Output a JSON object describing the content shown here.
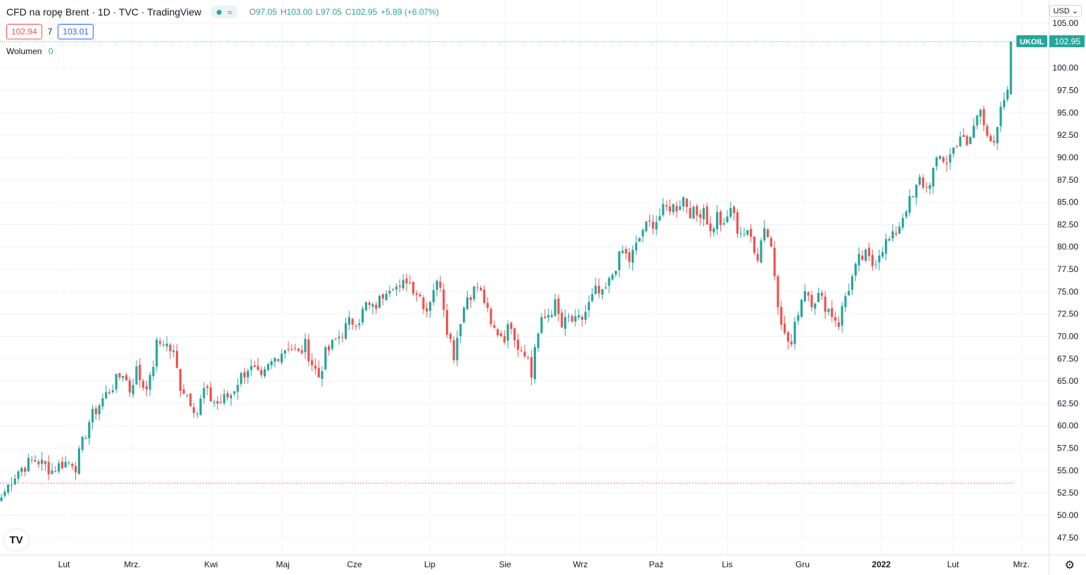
{
  "header": {
    "title": "CFD na ropę Brent · 1D · TVC · TradingView",
    "ohlc": [
      {
        "k": "O",
        "v": "97.05"
      },
      {
        "k": "H",
        "v": "103.00"
      },
      {
        "k": "L",
        "v": "97.05"
      },
      {
        "k": "C",
        "v": "102.95"
      }
    ],
    "change": "+5.89 (+6.07%)",
    "bid": "102.94",
    "spread": "7",
    "ask": "103.01",
    "volume_label": "Wolumen",
    "volume_value": "0",
    "currency": "USD"
  },
  "colors": {
    "up": "#26a69a",
    "down": "#ef5350",
    "grid": "#f0f3fa",
    "axis_text": "#131722"
  },
  "icons": {
    "logo": "tradingview-logo-icon",
    "settings": "gear-icon",
    "currency_dropdown": "chevron-down-icon"
  },
  "chart_data": {
    "type": "candlestick",
    "symbol_label": "UKOIL",
    "last_price": "102.95",
    "ylim": [
      45.6,
      107.6
    ],
    "y_ticks": [
      47.5,
      50,
      52.5,
      55,
      57.5,
      60,
      62.5,
      65,
      67.5,
      70,
      72.5,
      75,
      77.5,
      80,
      82.5,
      85,
      87.5,
      90,
      92.5,
      95,
      97.5,
      100,
      105
    ],
    "x_labels": [
      {
        "label": "Lut",
        "bold": false
      },
      {
        "label": "Mrz.",
        "bold": false
      },
      {
        "label": "Kwi",
        "bold": false
      },
      {
        "label": "Maj",
        "bold": false
      },
      {
        "label": "Cze",
        "bold": false
      },
      {
        "label": "Lip",
        "bold": false
      },
      {
        "label": "Sie",
        "bold": false
      },
      {
        "label": "Wrz",
        "bold": false
      },
      {
        "label": "Paź",
        "bold": false
      },
      {
        "label": "Lis",
        "bold": false
      },
      {
        "label": "Gru",
        "bold": false
      },
      {
        "label": "2022",
        "bold": true
      },
      {
        "label": "Lut",
        "bold": false
      },
      {
        "label": "Mrz.",
        "bold": false
      }
    ],
    "prev_close_line": 53.6,
    "anchors": [
      [
        0,
        52.0
      ],
      [
        3,
        54.0
      ],
      [
        5,
        55.0
      ],
      [
        8,
        55.8
      ],
      [
        10,
        56.3
      ],
      [
        13,
        55.5
      ],
      [
        15,
        55.0
      ],
      [
        18,
        55.8
      ],
      [
        21,
        56.0
      ],
      [
        22,
        55.5
      ],
      [
        24,
        58.0
      ],
      [
        26,
        60.5
      ],
      [
        28,
        61.8
      ],
      [
        30,
        63.0
      ],
      [
        33,
        64.5
      ],
      [
        36,
        66.0
      ],
      [
        38,
        64.0
      ],
      [
        40,
        66.2
      ],
      [
        42,
        64.5
      ],
      [
        44,
        65.0
      ],
      [
        46,
        69.0
      ],
      [
        48,
        69.5
      ],
      [
        51,
        68.0
      ],
      [
        53,
        64.5
      ],
      [
        55,
        63.5
      ],
      [
        58,
        61.5
      ],
      [
        60,
        64.0
      ],
      [
        62,
        63.0
      ],
      [
        64,
        62.5
      ],
      [
        66,
        63.0
      ],
      [
        68,
        63.5
      ],
      [
        70,
        65.0
      ],
      [
        73,
        66.5
      ],
      [
        75,
        66.0
      ],
      [
        77,
        65.0
      ],
      [
        79,
        66.5
      ],
      [
        82,
        68.0
      ],
      [
        85,
        69.0
      ],
      [
        88,
        68.0
      ],
      [
        90,
        69.0
      ],
      [
        92,
        67.0
      ],
      [
        94,
        65.5
      ],
      [
        96,
        68.0
      ],
      [
        98,
        69.0
      ],
      [
        100,
        70.0
      ],
      [
        103,
        71.5
      ],
      [
        106,
        72.0
      ],
      [
        108,
        73.5
      ],
      [
        110,
        73.0
      ],
      [
        112,
        74.0
      ],
      [
        114,
        75.5
      ],
      [
        116,
        76.0
      ],
      [
        118,
        75.0
      ],
      [
        120,
        76.5
      ],
      [
        122,
        75.5
      ],
      [
        124,
        74.5
      ],
      [
        126,
        73.0
      ],
      [
        128,
        75.5
      ],
      [
        130,
        76.0
      ],
      [
        132,
        71.0
      ],
      [
        134,
        68.0
      ],
      [
        136,
        72.0
      ],
      [
        138,
        74.5
      ],
      [
        141,
        75.5
      ],
      [
        143,
        74.0
      ],
      [
        145,
        71.0
      ],
      [
        147,
        70.5
      ],
      [
        149,
        70.0
      ],
      [
        151,
        71.5
      ],
      [
        153,
        69.0
      ],
      [
        155,
        68.5
      ],
      [
        156,
        67.5
      ],
      [
        157,
        65.5
      ],
      [
        158,
        69.0
      ],
      [
        160,
        71.5
      ],
      [
        162,
        72.5
      ],
      [
        164,
        73.5
      ],
      [
        166,
        71.0
      ],
      [
        168,
        72.0
      ],
      [
        170,
        71.5
      ],
      [
        172,
        72.0
      ],
      [
        174,
        73.5
      ],
      [
        176,
        75.0
      ],
      [
        178,
        74.5
      ],
      [
        180,
        76.0
      ],
      [
        182,
        78.0
      ],
      [
        184,
        79.5
      ],
      [
        186,
        78.5
      ],
      [
        188,
        80.0
      ],
      [
        190,
        82.0
      ],
      [
        192,
        82.5
      ],
      [
        194,
        83.0
      ],
      [
        196,
        84.0
      ],
      [
        198,
        84.5
      ],
      [
        200,
        84.5
      ],
      [
        202,
        85.5
      ],
      [
        204,
        84.0
      ],
      [
        206,
        83.5
      ],
      [
        208,
        84.5
      ],
      [
        210,
        81.5
      ],
      [
        212,
        83.5
      ],
      [
        214,
        82.0
      ],
      [
        216,
        84.5
      ],
      [
        218,
        82.0
      ],
      [
        220,
        81.5
      ],
      [
        222,
        81.0
      ],
      [
        224,
        79.0
      ],
      [
        226,
        82.5
      ],
      [
        228,
        80.0
      ],
      [
        230,
        74.0
      ],
      [
        232,
        70.0
      ],
      [
        234,
        69.0
      ],
      [
        236,
        73.0
      ],
      [
        238,
        75.5
      ],
      [
        240,
        74.0
      ],
      [
        242,
        74.5
      ],
      [
        244,
        73.5
      ],
      [
        246,
        72.5
      ],
      [
        248,
        71.5
      ],
      [
        250,
        74.5
      ],
      [
        252,
        76.5
      ],
      [
        254,
        78.5
      ],
      [
        256,
        79.0
      ],
      [
        258,
        78.0
      ],
      [
        260,
        79.5
      ],
      [
        262,
        80.5
      ],
      [
        264,
        81.0
      ],
      [
        266,
        82.5
      ],
      [
        268,
        84.5
      ],
      [
        270,
        85.5
      ],
      [
        272,
        87.5
      ],
      [
        274,
        86.5
      ],
      [
        276,
        88.5
      ],
      [
        278,
        90.0
      ],
      [
        280,
        89.5
      ],
      [
        282,
        91.0
      ],
      [
        284,
        92.5
      ],
      [
        286,
        91.0
      ],
      [
        288,
        93.5
      ],
      [
        290,
        95.5
      ],
      [
        292,
        93.0
      ],
      [
        294,
        91.0
      ],
      [
        296,
        95.0
      ],
      [
        297,
        96.5
      ],
      [
        298,
        97.0
      ],
      [
        299,
        102.95
      ]
    ],
    "last_candle": {
      "open": 97.05,
      "high": 103.0,
      "low": 97.05,
      "close": 102.95
    }
  }
}
